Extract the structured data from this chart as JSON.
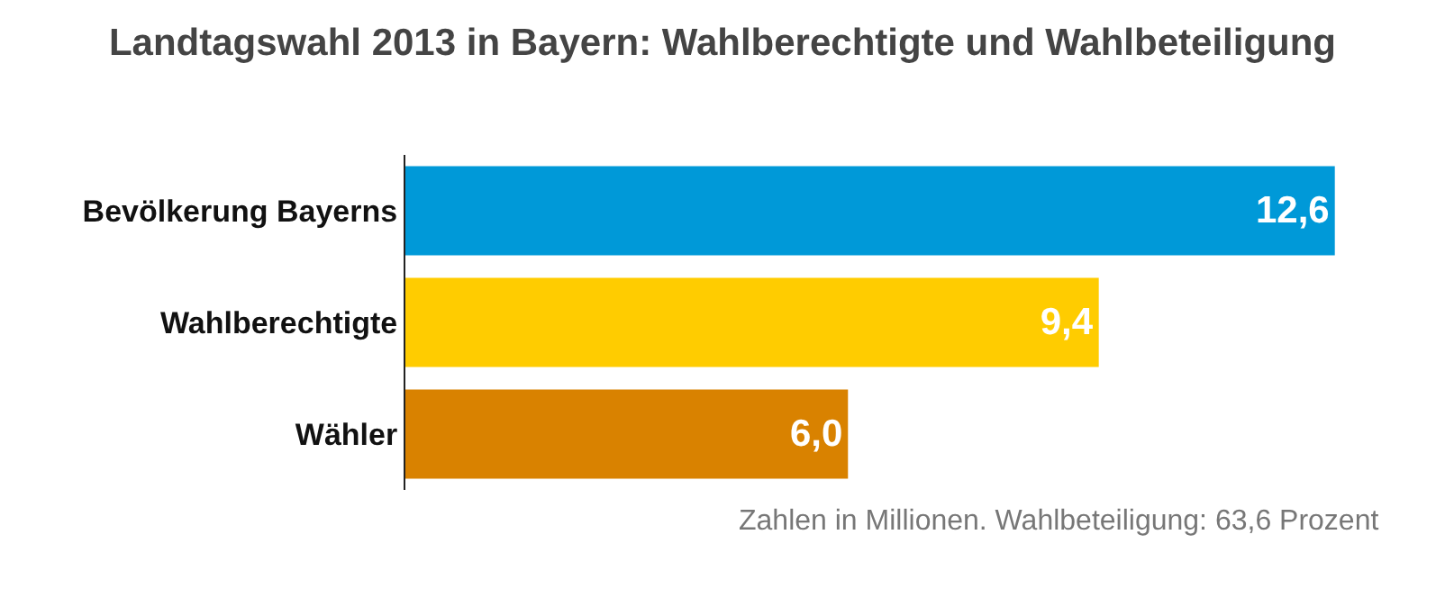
{
  "chart_data": {
    "type": "bar",
    "orientation": "horizontal",
    "title": "Landtagswahl 2013 in Bayern: Wahlberechtigte und Wahlbeteiligung",
    "categories": [
      "Bevölkerung Bayerns",
      "Wahlberechtigte",
      "Wähler"
    ],
    "values": [
      12.6,
      9.4,
      6.0
    ],
    "colors": [
      "#0099d8",
      "#ffcc00",
      "#d98200"
    ],
    "value_labels": [
      "12,6",
      "9,4",
      "6,0"
    ],
    "annotations": [
      "Zahlen in Millionen. Wahlbeteiligung: 63,6 Prozent"
    ],
    "legend": false
  }
}
